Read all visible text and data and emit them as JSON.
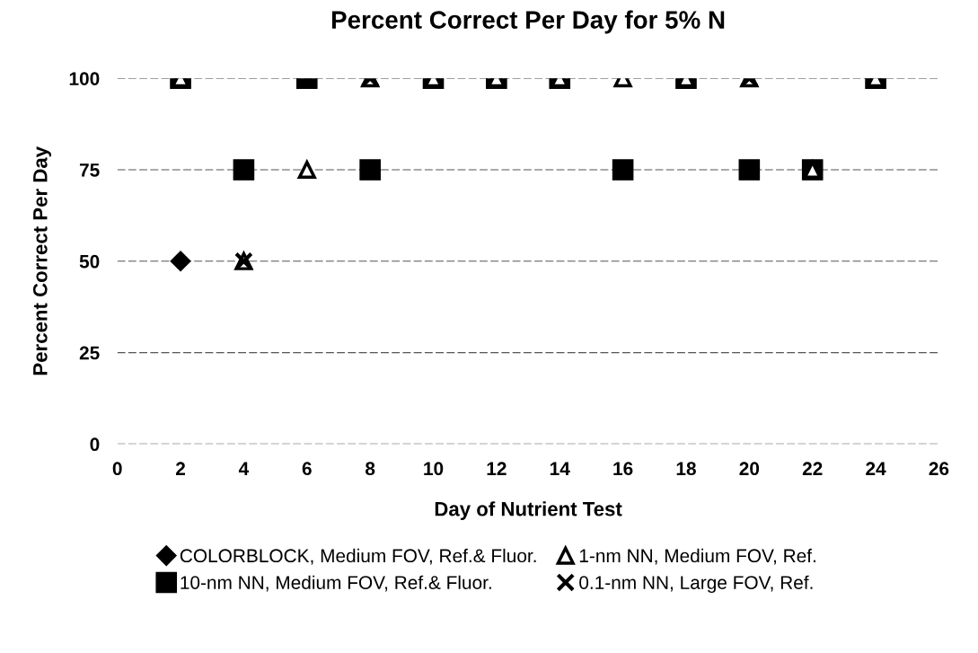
{
  "chart_data": {
    "type": "scatter",
    "title": "Percent Correct Per Day for 5% N",
    "xlabel": "Day of Nutrient Test",
    "ylabel": "Percent Correct Per Day",
    "xlim": [
      0,
      26
    ],
    "xticks": [
      0,
      2,
      4,
      6,
      8,
      10,
      12,
      14,
      16,
      18,
      20,
      22,
      24,
      26
    ],
    "ylim": [
      0,
      100
    ],
    "yticks": [
      0,
      25,
      50,
      75,
      100
    ],
    "grid": "y",
    "legend": "bottom",
    "series": [
      {
        "name": "COLORBLOCK, Medium FOV, Ref.& Fluor.",
        "color": "#000000",
        "marker": "diamond",
        "x": [
          2
        ],
        "values": [
          50
        ]
      },
      {
        "name": "10-nm NN, Medium FOV, Ref.& Fluor.",
        "color": "#000000",
        "marker": "square",
        "x": [
          2,
          4,
          6,
          8,
          10,
          12,
          14,
          16,
          18,
          20,
          22,
          24
        ],
        "values": [
          100,
          75,
          100,
          75,
          100,
          100,
          100,
          75,
          100,
          75,
          75,
          100
        ]
      },
      {
        "name": "1-nm NN, Medium FOV, Ref.",
        "color": "#000000",
        "marker": "triangle",
        "x": [
          2,
          4,
          6,
          8,
          10,
          12,
          14,
          16,
          18,
          20,
          22,
          24
        ],
        "values": [
          100,
          50,
          75,
          100,
          100,
          100,
          100,
          100,
          100,
          100,
          75,
          100
        ]
      },
      {
        "name": "0.1-nm NN, Large FOV, Ref.",
        "color": "#000000",
        "marker": "cross",
        "x": [
          4,
          8,
          20
        ],
        "values": [
          50,
          100,
          100
        ]
      }
    ]
  }
}
